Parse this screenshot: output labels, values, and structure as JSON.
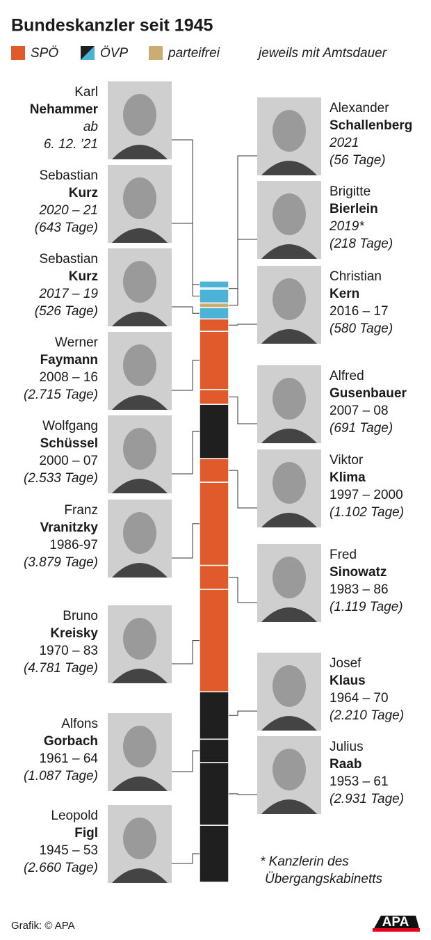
{
  "header": {
    "title": "Bundeskanzler seit 1945"
  },
  "legend": {
    "items": [
      {
        "label": "SPÖ",
        "color": "#e05a2b"
      },
      {
        "label": "ÖVP",
        "color": "#1f1f1f",
        "color2": "#4bb3d6"
      },
      {
        "label": "parteifrei",
        "color": "#c9ad73"
      }
    ],
    "note": "jeweils mit Amtsdauer"
  },
  "chancellors": [
    {
      "first": "Leopold",
      "last": "Figl",
      "years": [
        "1945 – 53"
      ],
      "days": 2660,
      "days_label": "(2.660 Tage)",
      "color": "#1f1f1f"
    },
    {
      "first": "Julius",
      "last": "Raab",
      "years": [
        "1953 – 61"
      ],
      "days": 2931,
      "days_label": "(2.931 Tage)",
      "color": "#1f1f1f"
    },
    {
      "first": "Alfons",
      "last": "Gorbach",
      "years": [
        "1961 – 64"
      ],
      "days": 1087,
      "days_label": "(1.087 Tage)",
      "color": "#1f1f1f"
    },
    {
      "first": "Josef",
      "last": "Klaus",
      "years": [
        "1964 – 70"
      ],
      "days": 2210,
      "days_label": "(2.210 Tage)",
      "color": "#1f1f1f"
    },
    {
      "first": "Bruno",
      "last": "Kreisky",
      "years": [
        "1970 – 83"
      ],
      "days": 4781,
      "days_label": "(4.781 Tage)",
      "color": "#e05a2b"
    },
    {
      "first": "Fred",
      "last": "Sinowatz",
      "years": [
        "1983 – 86"
      ],
      "days": 1119,
      "days_label": "(1.119 Tage)",
      "color": "#e05a2b"
    },
    {
      "first": "Franz",
      "last": "Vranitzky",
      "years": [
        "1986-97"
      ],
      "days": 3879,
      "days_label": "(3.879 Tage)",
      "color": "#e05a2b"
    },
    {
      "first": "Viktor",
      "last": "Klima",
      "years": [
        "1997 – 2000"
      ],
      "days": 1102,
      "days_label": "(1.102 Tage)",
      "color": "#e05a2b"
    },
    {
      "first": "Wolfgang",
      "last": "Schüssel",
      "years": [
        "2000 – 07"
      ],
      "days": 2533,
      "days_label": "(2.533 Tage)",
      "color": "#1f1f1f"
    },
    {
      "first": "Alfred",
      "last": "Gusenbauer",
      "years": [
        "2007 – 08"
      ],
      "days": 691,
      "days_label": "(691 Tage)",
      "color": "#e05a2b"
    },
    {
      "first": "Werner",
      "last": "Faymann",
      "years": [
        "2008 – 16"
      ],
      "days": 2715,
      "days_label": "(2.715 Tage)",
      "color": "#e05a2b"
    },
    {
      "first": "Christian",
      "last": "Kern",
      "years": [
        "2016 – 17"
      ],
      "days": 580,
      "days_label": "(580 Tage)",
      "color": "#e05a2b"
    },
    {
      "first": "Sebastian",
      "last": "Kurz",
      "years": [
        "2017 – 19"
      ],
      "days": 526,
      "days_label": "(526 Tage)",
      "color": "#4bb3d6",
      "years_italic": true
    },
    {
      "first": "Brigitte",
      "last": "Bierlein",
      "years": [
        "2019*"
      ],
      "days": 218,
      "days_label": "(218 Tage)",
      "color": "#c9ad73",
      "years_italic": true
    },
    {
      "first": "Sebastian",
      "last": "Kurz",
      "years": [
        "2020 – 21"
      ],
      "days": 643,
      "days_label": "(643 Tage)",
      "color": "#4bb3d6",
      "years_italic": true
    },
    {
      "first": "Alexander",
      "last": "Schallenberg",
      "years": [
        "2021"
      ],
      "days": 56,
      "days_label": "(56 Tage)",
      "color": "#4bb3d6",
      "years_italic": true
    },
    {
      "first": "Karl",
      "last": "Nehammer",
      "years": [
        "ab",
        "6. 12. ’21"
      ],
      "color": "#4bb3d6",
      "years_italic": true
    }
  ],
  "footnote": [
    "* Kanzlerin des",
    "Übergangskabinetts"
  ],
  "footer": {
    "credit": "Grafik: © APA",
    "logo": "APA"
  }
}
